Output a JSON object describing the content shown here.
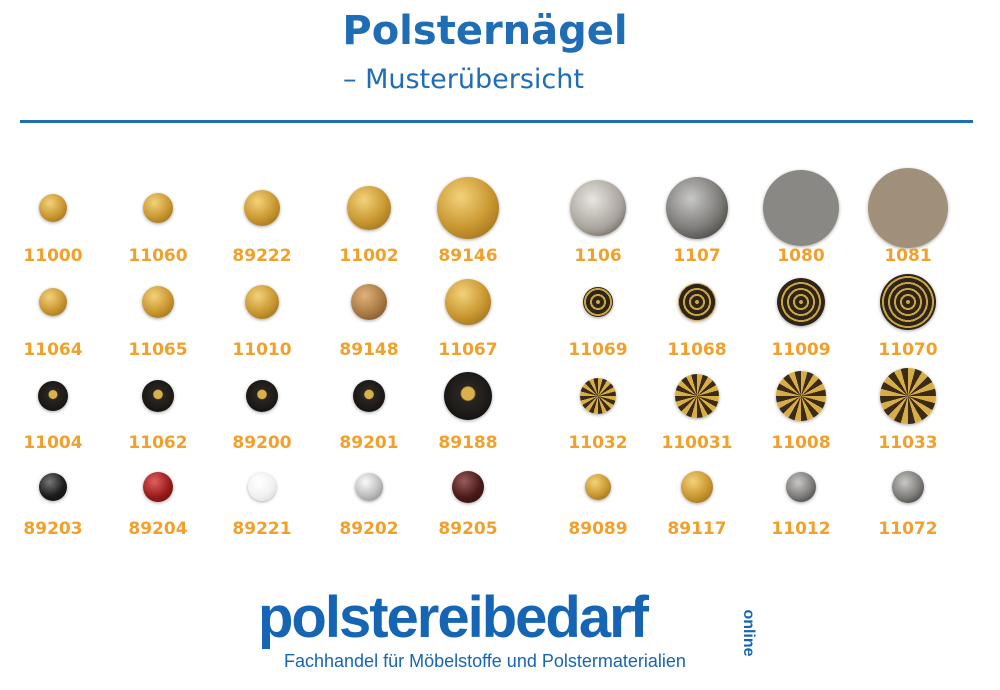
{
  "header": {
    "title": "Polsternägel",
    "subtitle": "– Musterübersicht"
  },
  "colors": {
    "brand_blue": "#1f6db5",
    "code_orange": "#f1a12b"
  },
  "nails_left": [
    [
      {
        "code": "11000",
        "style": "gold"
      },
      {
        "code": "11060",
        "style": "gold"
      },
      {
        "code": "89222",
        "style": "gold"
      },
      {
        "code": "11002",
        "style": "gold"
      },
      {
        "code": "89146",
        "style": "gold"
      }
    ],
    [
      {
        "code": "11064",
        "style": "gold"
      },
      {
        "code": "11065",
        "style": "gold"
      },
      {
        "code": "11010",
        "style": "gold"
      },
      {
        "code": "89148",
        "style": "bronze"
      },
      {
        "code": "11067",
        "style": "gold"
      }
    ],
    [
      {
        "code": "11004",
        "style": "black-gold-cap"
      },
      {
        "code": "11062",
        "style": "black-gold-cap"
      },
      {
        "code": "89200",
        "style": "black-gold-cap"
      },
      {
        "code": "89201",
        "style": "black-gold-cap"
      },
      {
        "code": "89188",
        "style": "black-gold-cap"
      }
    ],
    [
      {
        "code": "89203",
        "style": "black"
      },
      {
        "code": "89204",
        "style": "red"
      },
      {
        "code": "89221",
        "style": "white"
      },
      {
        "code": "89202",
        "style": "silver"
      },
      {
        "code": "89205",
        "style": "dark-brown"
      }
    ]
  ],
  "nails_right": [
    [
      {
        "code": "1106",
        "style": "pewter-light"
      },
      {
        "code": "1107",
        "style": "pewter-dark"
      },
      {
        "code": "1080",
        "style": "felt-grey"
      },
      {
        "code": "1081",
        "style": "felt-brown"
      }
    ],
    [
      {
        "code": "11069",
        "style": "ornate-circles"
      },
      {
        "code": "11068",
        "style": "ornate-circles"
      },
      {
        "code": "11009",
        "style": "ornate-circles"
      },
      {
        "code": "11070",
        "style": "ornate-circles"
      }
    ],
    [
      {
        "code": "11032",
        "style": "ornate-flower"
      },
      {
        "code": "110031",
        "style": "ornate-flower"
      },
      {
        "code": "11008",
        "style": "ornate-flower"
      },
      {
        "code": "11033",
        "style": "ornate-flower"
      }
    ],
    [
      {
        "code": "89089",
        "style": "gold"
      },
      {
        "code": "89117",
        "style": "gold"
      },
      {
        "code": "11012",
        "style": "pewter-dark"
      },
      {
        "code": "11072",
        "style": "pewter-dark"
      }
    ]
  ],
  "logo": {
    "main": "polstereibedarf",
    "tagline": "Fachhandel für Möbelstoffe und Polstermaterialien",
    "suffix": "online"
  }
}
